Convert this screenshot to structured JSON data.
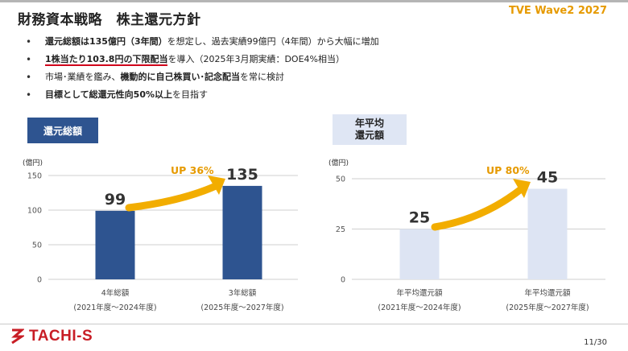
{
  "header": {
    "title": "財務資本戦略　株主還元方針",
    "tag": "TVE Wave2 2027"
  },
  "bullets": [
    {
      "parts": [
        {
          "t": "還元総額は135億円（3年間）",
          "b": true
        },
        {
          "t": "を想定し、過去実績99億円（4年間）から大幅に増加",
          "b": false
        }
      ]
    },
    {
      "parts": [
        {
          "t": "1株当たり103.8円の下限配当",
          "b": true,
          "u": true
        },
        {
          "t": "を導入（2025年3月期実績：DOE4%相当）",
          "b": false
        }
      ]
    },
    {
      "parts": [
        {
          "t": "市場･業績を鑑み、",
          "b": false
        },
        {
          "t": "機動的に自己株買い･記念配当",
          "b": true
        },
        {
          "t": "を常に検討",
          "b": false
        }
      ]
    },
    {
      "parts": [
        {
          "t": "目標として総還元性向50%以上",
          "b": true
        },
        {
          "t": "を目指す",
          "b": false
        }
      ]
    }
  ],
  "left_panel": {
    "label": "還元総額"
  },
  "right_panel": {
    "label_line1": "年平均",
    "label_line2": "還元額"
  },
  "chart_data": [
    {
      "type": "bar",
      "ylabel": "(億円)",
      "ylim": [
        0,
        150
      ],
      "yticks": [
        0,
        50,
        100,
        150
      ],
      "categories": [
        {
          "line1": "4年総額",
          "line2": "(2021年度～2024年度)"
        },
        {
          "line1": "3年総額",
          "line2": "(2025年度～2027年度)"
        }
      ],
      "values": [
        99,
        135
      ],
      "value_labels": [
        "99",
        "135"
      ],
      "colors": [
        "#2e5490",
        "#2e5490"
      ],
      "annotation": "UP 36%",
      "grid": true
    },
    {
      "type": "bar",
      "ylabel": "(億円)",
      "ylim": [
        0,
        50
      ],
      "yticks": [
        0,
        25,
        50
      ],
      "categories": [
        {
          "line1": "年平均還元額",
          "line2": "(2021年度～2024年度)"
        },
        {
          "line1": "年平均還元額",
          "line2": "(2025年度～2027年度)"
        }
      ],
      "values": [
        25,
        45
      ],
      "value_labels": [
        "25",
        "45"
      ],
      "colors": [
        "#dde4f3",
        "#dde4f3"
      ],
      "annotation": "UP 80%",
      "grid": true
    }
  ],
  "footer": {
    "logo_text": "TACHI-S",
    "page": "11/30"
  },
  "colors": {
    "accent": "#e69a00",
    "navy": "#2e5490",
    "light": "#dde4f3",
    "red": "#d0021b",
    "brand_red": "#c81d25"
  }
}
